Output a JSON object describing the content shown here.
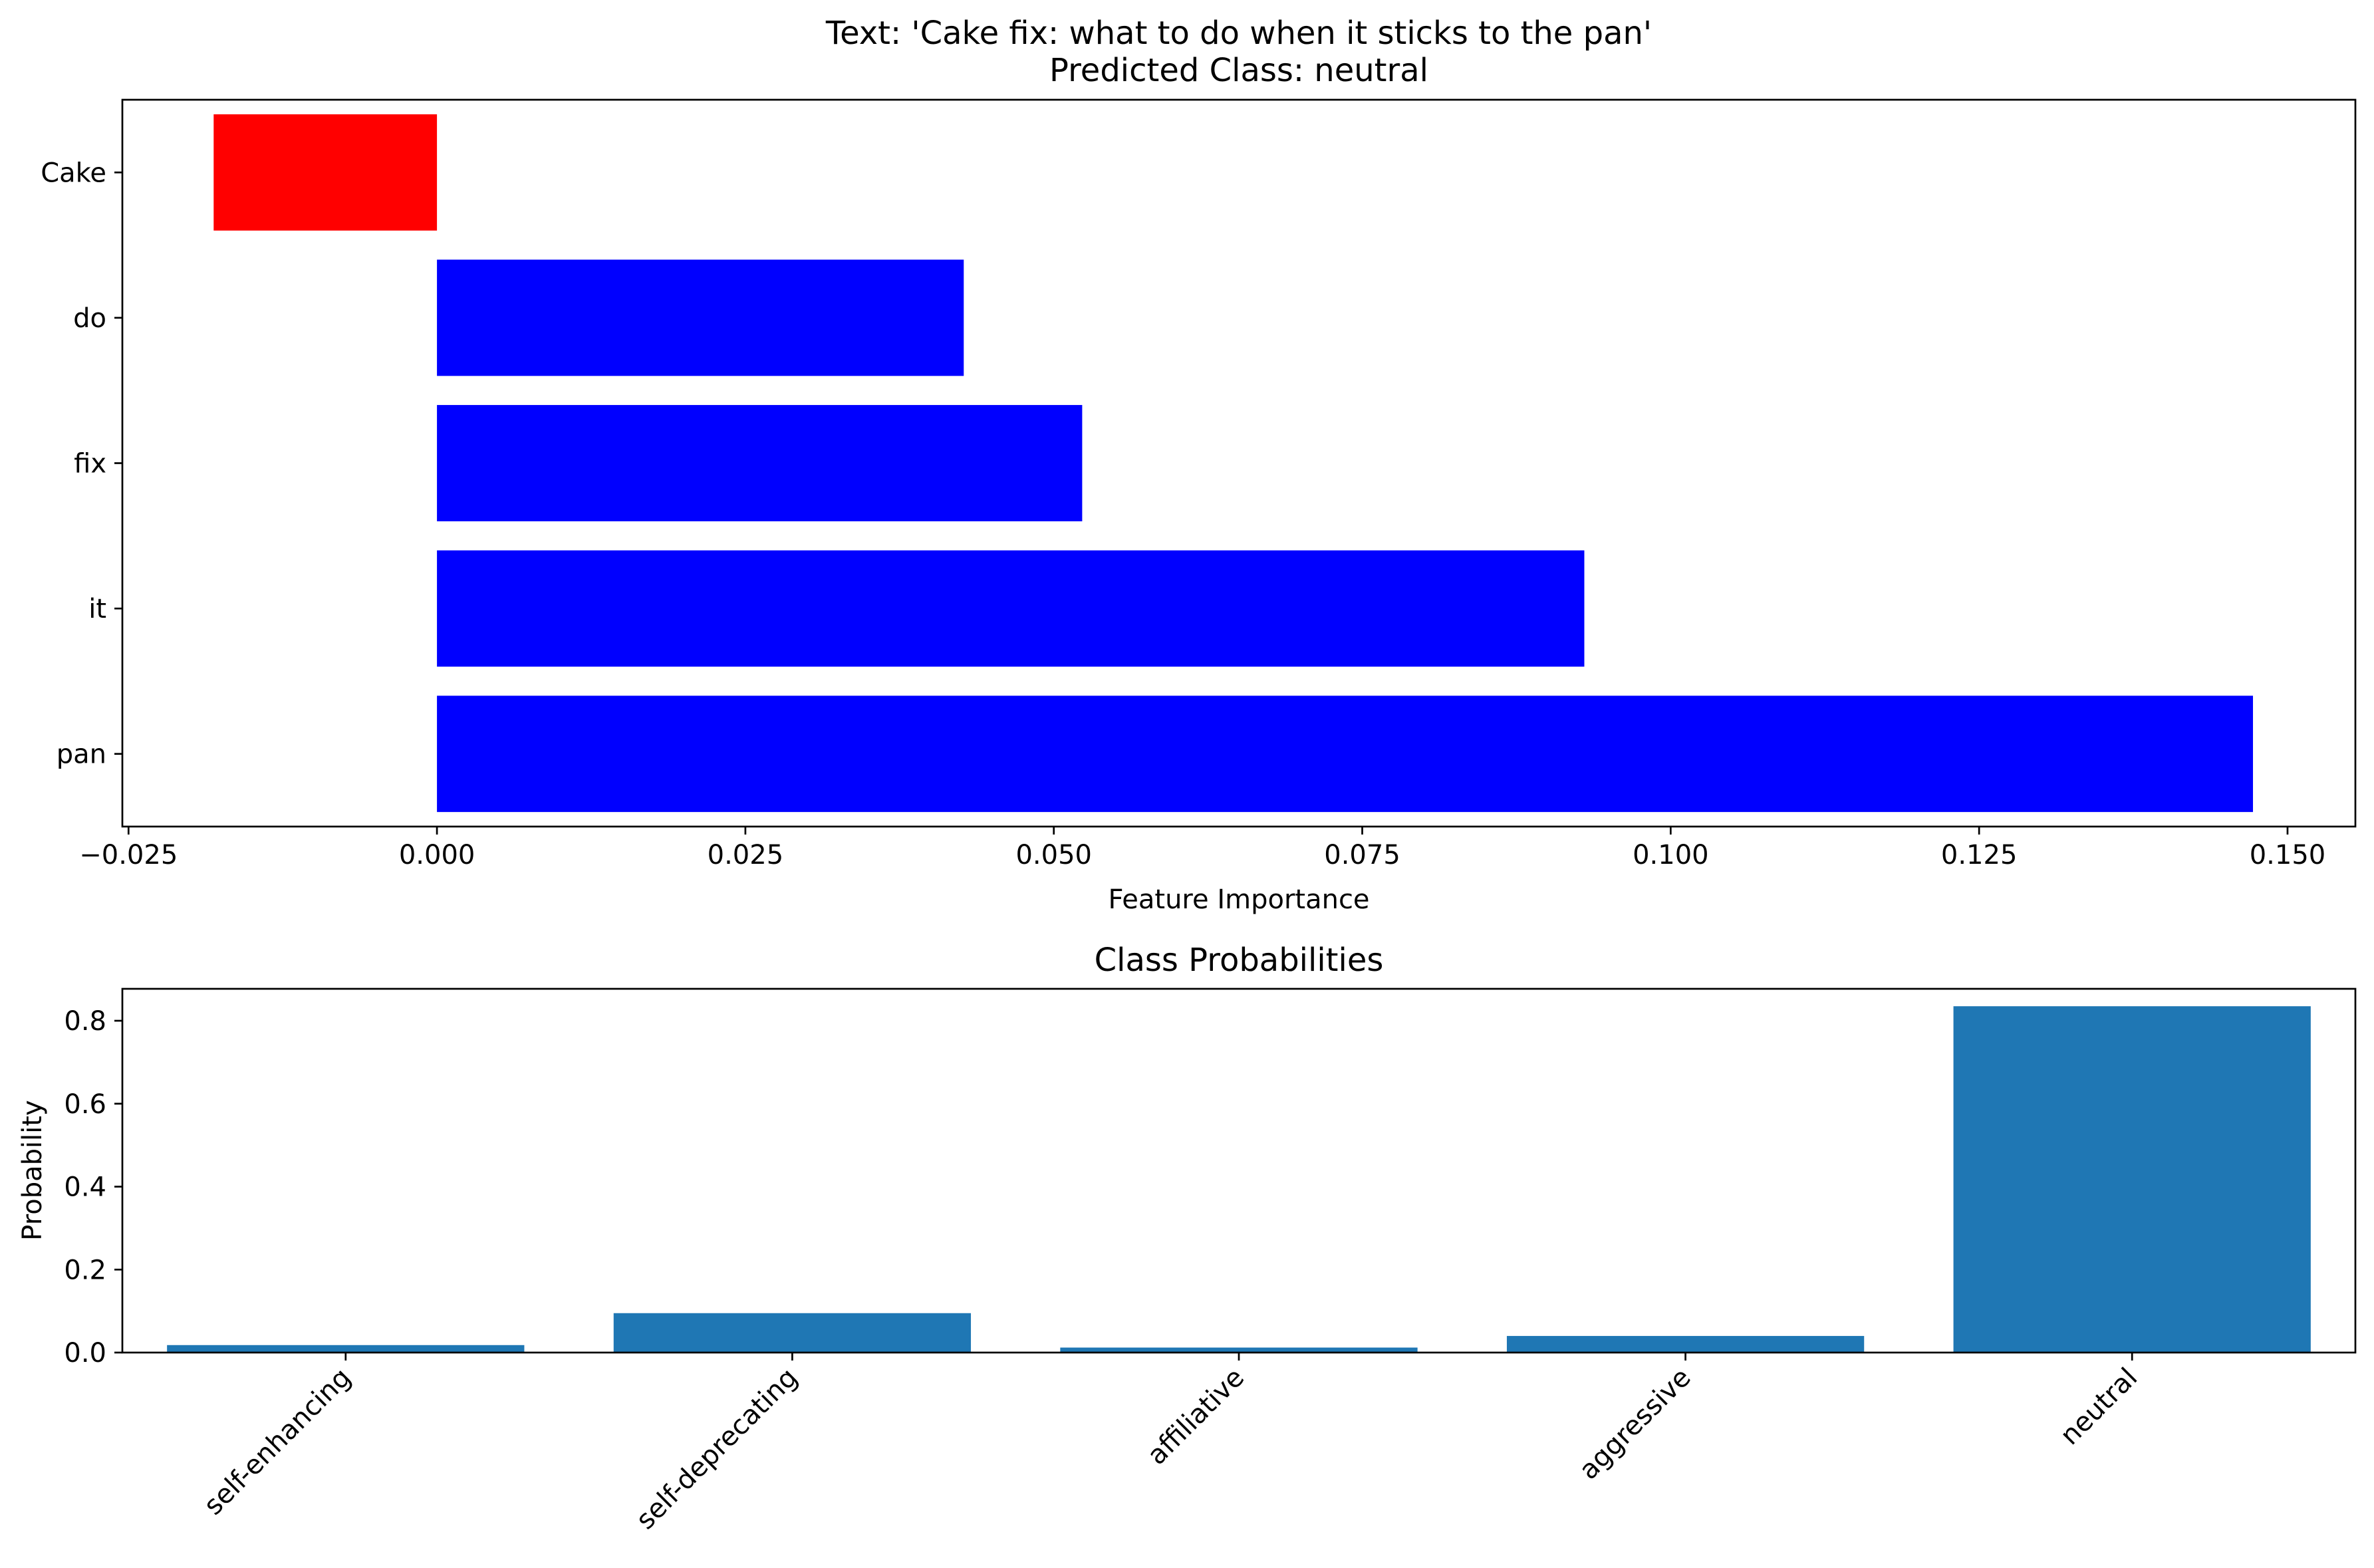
{
  "chart_data": [
    {
      "type": "bar",
      "orientation": "horizontal",
      "title": "Text: 'Cake fix: what to do when it sticks to the pan'",
      "subtitle": "Predicted Class: neutral",
      "xlabel": "Feature Importance",
      "ylabel": "",
      "categories": [
        "Cake",
        "do",
        "fix",
        "it",
        "pan"
      ],
      "values": [
        -0.0181,
        0.0427,
        0.0523,
        0.093,
        0.1472
      ],
      "bar_colors": [
        "#ff0000",
        "#0000ff",
        "#0000ff",
        "#0000ff",
        "#0000ff"
      ],
      "xlim": [
        -0.0255,
        0.1555
      ],
      "xticks": [
        -0.025,
        0.0,
        0.025,
        0.05,
        0.075,
        0.1,
        0.125,
        0.15
      ],
      "xtick_labels": [
        "−0.025",
        "0.000",
        "0.025",
        "0.050",
        "0.075",
        "0.100",
        "0.125",
        "0.150"
      ],
      "grid": false,
      "legend": "none"
    },
    {
      "type": "bar",
      "title": "Class Probabilities",
      "xlabel": "",
      "ylabel": "Probability",
      "categories": [
        "self-enhancing",
        "self-deprecating",
        "affiliative",
        "aggressive",
        "neutral"
      ],
      "values": [
        0.018,
        0.095,
        0.012,
        0.04,
        0.835
      ],
      "bar_color": "#1f77b4",
      "ylim": [
        0,
        0.877
      ],
      "yticks": [
        0.0,
        0.2,
        0.4,
        0.6,
        0.8
      ],
      "ytick_labels": [
        "0.0",
        "0.2",
        "0.4",
        "0.6",
        "0.8"
      ],
      "grid": false,
      "legend": "none"
    }
  ]
}
